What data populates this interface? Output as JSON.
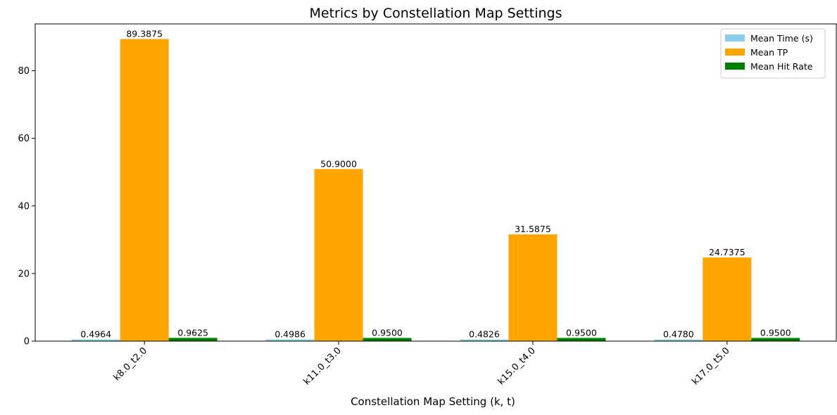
{
  "chart_data": {
    "type": "bar",
    "title": "Metrics by Constellation Map Settings",
    "xlabel": "Constellation Map Setting (k, t)",
    "ylabel": "",
    "categories": [
      "k8.0_t2.0",
      "k11.0_t3.0",
      "k15.0_t4.0",
      "k17.0_t5.0"
    ],
    "ylim": [
      0,
      93.85
    ],
    "yticks": [
      0,
      20,
      40,
      60,
      80
    ],
    "grid": false,
    "legend_position": "top-right",
    "series": [
      {
        "name": "Mean Time (s)",
        "color": "#87ceeb",
        "values": [
          0.4964,
          0.4986,
          0.4826,
          0.478
        ],
        "labels": [
          "0.4964",
          "0.4986",
          "0.4826",
          "0.4780"
        ]
      },
      {
        "name": "Mean TP",
        "color": "#ffa500",
        "values": [
          89.3875,
          50.9,
          31.5875,
          24.7375
        ],
        "labels": [
          "89.3875",
          "50.9000",
          "31.5875",
          "24.7375"
        ]
      },
      {
        "name": "Mean Hit Rate",
        "color": "#008000",
        "values": [
          0.9625,
          0.95,
          0.95,
          0.95
        ],
        "labels": [
          "0.9625",
          "0.9500",
          "0.9500",
          "0.9500"
        ]
      }
    ]
  }
}
